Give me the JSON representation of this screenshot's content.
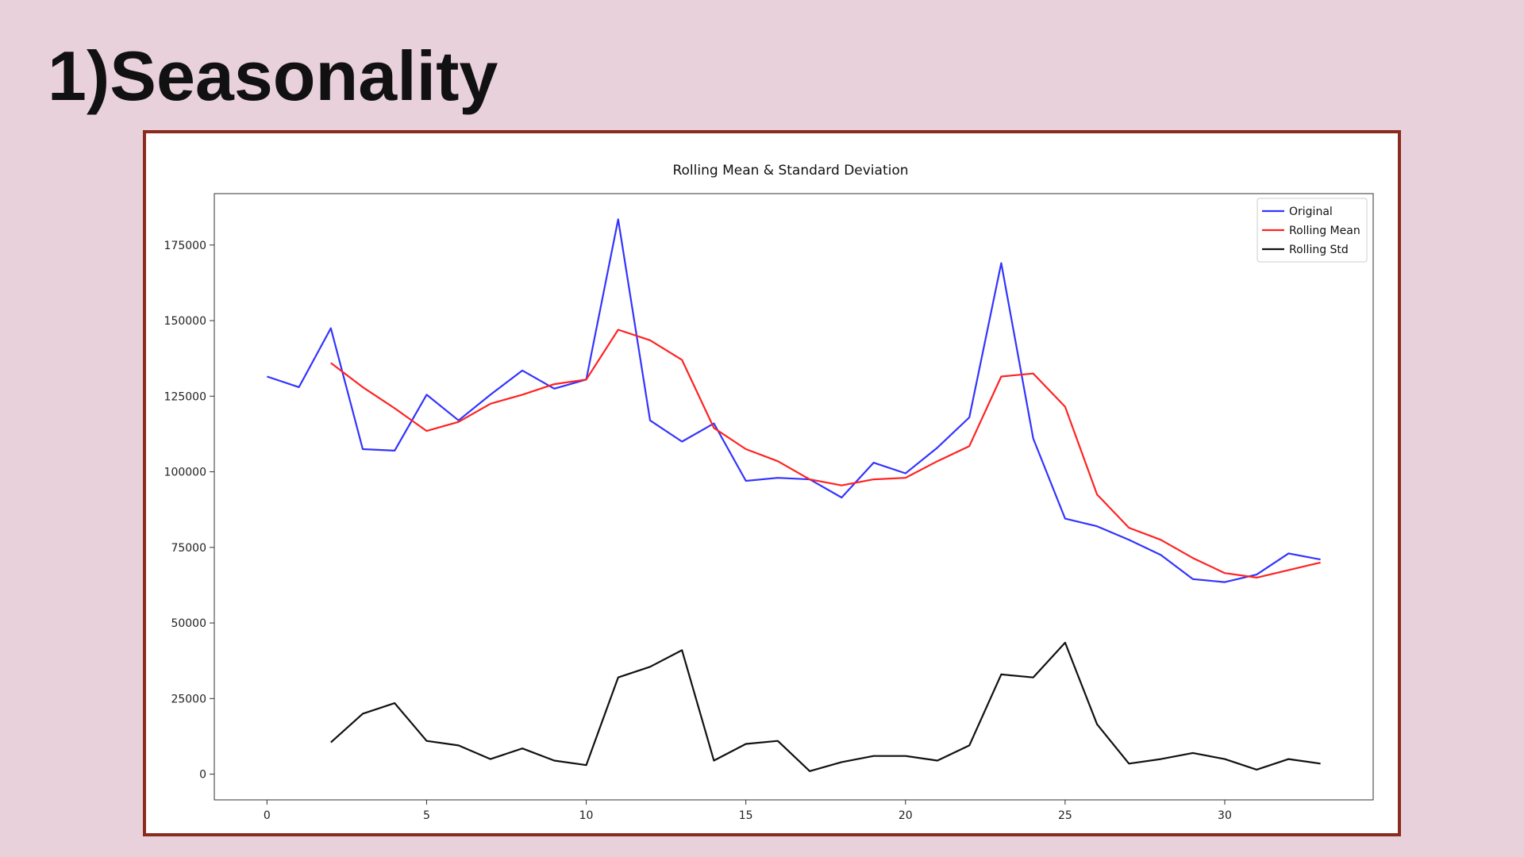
{
  "slide": {
    "title": "1)Seasonality"
  },
  "chart_data": {
    "type": "line",
    "title": "Rolling Mean & Standard Deviation",
    "xlabel": "",
    "ylabel": "",
    "xlim": [
      -1.65,
      34.65
    ],
    "ylim": [
      -8500,
      192000
    ],
    "xticks": [
      0,
      5,
      10,
      15,
      20,
      25,
      30
    ],
    "yticks": [
      0,
      25000,
      50000,
      75000,
      100000,
      125000,
      150000,
      175000
    ],
    "grid": false,
    "legend_position": "top-right",
    "series": [
      {
        "name": "Original",
        "color": "#3333ff",
        "x": [
          0,
          1,
          2,
          3,
          4,
          5,
          6,
          7,
          8,
          9,
          10,
          11,
          12,
          13,
          14,
          15,
          16,
          17,
          18,
          19,
          20,
          21,
          22,
          23,
          24,
          25,
          26,
          27,
          28,
          29,
          30,
          31,
          32,
          33
        ],
        "values": [
          131500,
          128000,
          147500,
          107500,
          107000,
          125500,
          117000,
          125500,
          133500,
          127500,
          130500,
          183500,
          117000,
          110000,
          116000,
          97000,
          98000,
          97500,
          91500,
          103000,
          99500,
          108000,
          118000,
          169000,
          111000,
          84500,
          82000,
          77500,
          72500,
          64500,
          63500,
          66000,
          73000,
          71000
        ]
      },
      {
        "name": "Rolling Mean",
        "color": "#ff2222",
        "x": [
          2,
          3,
          4,
          5,
          6,
          7,
          8,
          9,
          10,
          11,
          12,
          13,
          14,
          15,
          16,
          17,
          18,
          19,
          20,
          21,
          22,
          23,
          24,
          25,
          26,
          27,
          28,
          29,
          30,
          31,
          32,
          33
        ],
        "values": [
          136000,
          128000,
          121000,
          113500,
          116500,
          122500,
          125500,
          129000,
          130500,
          147000,
          143500,
          137000,
          114500,
          107500,
          103500,
          97500,
          95500,
          97500,
          98000,
          103500,
          108500,
          131500,
          132500,
          121500,
          92500,
          81500,
          77500,
          71500,
          66500,
          65000,
          67500,
          70000
        ]
      },
      {
        "name": "Rolling Std",
        "color": "#111111",
        "x": [
          2,
          3,
          4,
          5,
          6,
          7,
          8,
          9,
          10,
          11,
          12,
          13,
          14,
          15,
          16,
          17,
          18,
          19,
          20,
          21,
          22,
          23,
          24,
          25,
          26,
          27,
          28,
          29,
          30,
          31,
          32,
          33
        ],
        "values": [
          10500,
          20000,
          23500,
          11000,
          9500,
          5000,
          8500,
          4500,
          3000,
          32000,
          35500,
          41000,
          4500,
          10000,
          11000,
          1000,
          4000,
          6000,
          6000,
          4500,
          9500,
          33000,
          32000,
          43500,
          16500,
          3500,
          5000,
          7000,
          5000,
          1500,
          5000,
          3500
        ]
      }
    ]
  }
}
